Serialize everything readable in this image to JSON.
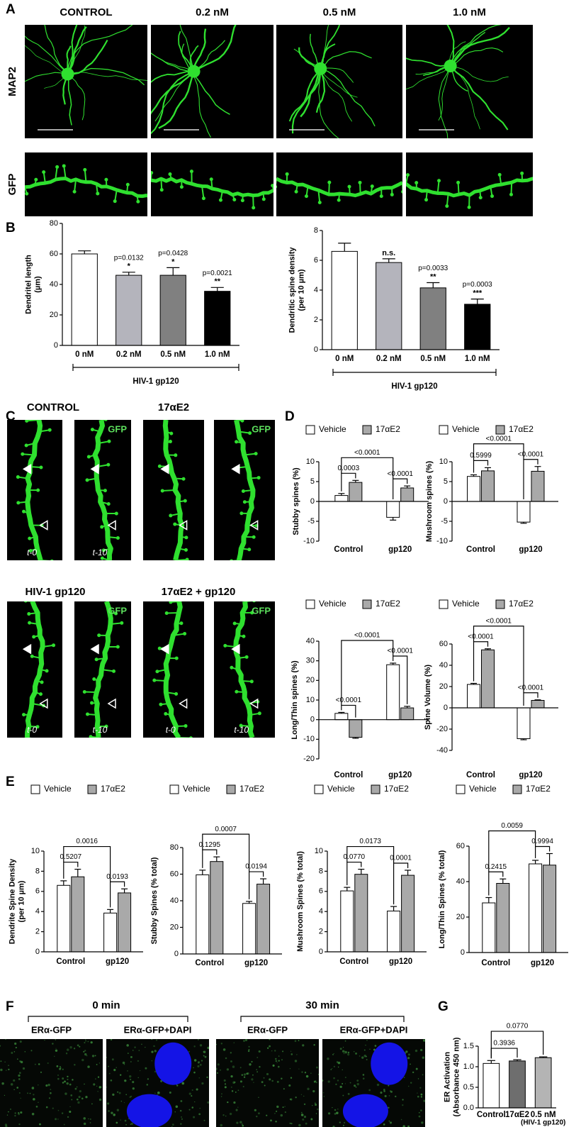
{
  "panel_letters": [
    "A",
    "B",
    "C",
    "D",
    "E",
    "F",
    "G"
  ],
  "panel_a": {
    "columns": [
      "CONTROL",
      "0.2 nM",
      "0.5 nM",
      "1.0 nM"
    ],
    "rows": [
      "MAP2",
      "GFP"
    ]
  },
  "panel_c": {
    "conditions": [
      "CONTROL",
      "17αE2",
      "HIV-1 gp120",
      "17αE2 + gp120"
    ],
    "channel": "GFP",
    "times": [
      "t-0",
      "t-10"
    ]
  },
  "panel_f": {
    "times": [
      "0 min",
      "30 min"
    ],
    "channels": [
      "ERα-GFP",
      "ERα-GFP+DAPI"
    ]
  },
  "chart_data": [
    {
      "type": "bar",
      "ylabel": [
        "Dendritel length",
        "(µm)"
      ],
      "xlabel": "HIV-1 gp120",
      "categories": [
        "0 nM",
        "0.2 nM",
        "0.5 nM",
        "1.0 nM"
      ],
      "values": [
        60,
        46,
        46,
        35.5
      ],
      "errors": [
        2,
        2,
        5,
        2.5
      ],
      "colors": [
        "#ffffff",
        "#b4b4bc",
        "#808080",
        "#000000"
      ],
      "p_values": [
        null,
        "p=0.0132",
        "p=0.0428",
        "p=0.0021"
      ],
      "significance": [
        null,
        "*",
        "*",
        "**"
      ],
      "ylim": [
        0,
        80
      ],
      "yticks": [
        0,
        20,
        40,
        60,
        80
      ]
    },
    {
      "type": "bar",
      "ylabel": [
        "Dendritic spine density",
        "(per 10 µm)"
      ],
      "xlabel": "HIV-1 gp120",
      "categories": [
        "0 nM",
        "0.2 nM",
        "0.5 nM",
        "1.0 nM"
      ],
      "values": [
        6.6,
        5.85,
        4.15,
        3.05
      ],
      "errors": [
        0.55,
        0.25,
        0.35,
        0.35
      ],
      "colors": [
        "#ffffff",
        "#b4b4bc",
        "#808080",
        "#000000"
      ],
      "p_values": [
        null,
        null,
        "p=0.0033",
        "p=0.0003"
      ],
      "significance": [
        null,
        "n.s.",
        "**",
        "***"
      ],
      "ylim": [
        0,
        8
      ],
      "yticks": [
        0,
        2,
        4,
        6,
        8
      ]
    },
    {
      "type": "grouped_bar",
      "ylabel": [
        "Stubby spines (%)"
      ],
      "categories": [
        "Control",
        "gp120"
      ],
      "series": [
        {
          "name": "Vehicle",
          "color": "#ffffff",
          "values": [
            1.5,
            -4
          ],
          "errors": [
            0.5,
            0.7
          ]
        },
        {
          "name": "17αE2",
          "color": "#a9a9a9",
          "values": [
            4.8,
            3.4
          ],
          "errors": [
            0.5,
            0.5
          ]
        }
      ],
      "comparisons": [
        "0.0003",
        "<0.0001",
        "<0.0001"
      ],
      "ylim": [
        -10,
        10
      ],
      "yticks": [
        -10,
        -5,
        0,
        5,
        10
      ]
    },
    {
      "type": "grouped_bar",
      "ylabel": [
        "Mushroom spines (%)"
      ],
      "categories": [
        "Control",
        "gp120"
      ],
      "series": [
        {
          "name": "Vehicle",
          "color": "#ffffff",
          "values": [
            6.3,
            -5.2
          ],
          "errors": [
            0.4,
            0.3
          ]
        },
        {
          "name": "17αE2",
          "color": "#a9a9a9",
          "values": [
            7.7,
            7.6
          ],
          "errors": [
            0.8,
            1.2
          ]
        }
      ],
      "comparisons": [
        "0.5999",
        "<0.0001",
        "<0.0001"
      ],
      "ylim": [
        -10,
        10
      ],
      "yticks": [
        -10,
        -5,
        0,
        5,
        10
      ]
    },
    {
      "type": "grouped_bar",
      "ylabel": [
        "Long/Thin spines (%)"
      ],
      "categories": [
        "Control",
        "gp120"
      ],
      "series": [
        {
          "name": "Vehicle",
          "color": "#ffffff",
          "values": [
            3.2,
            28
          ],
          "errors": [
            0.5,
            0.8
          ]
        },
        {
          "name": "17αE2",
          "color": "#a9a9a9",
          "values": [
            -9,
            6
          ],
          "errors": [
            0.5,
            0.8
          ]
        }
      ],
      "comparisons": [
        "<0.0001",
        "<0.0001",
        "<0.0001"
      ],
      "ylim": [
        -20,
        40
      ],
      "yticks": [
        -20,
        -10,
        0,
        10,
        20,
        30,
        40
      ]
    },
    {
      "type": "grouped_bar",
      "ylabel": [
        "Spine Volume (%)"
      ],
      "categories": [
        "Control",
        "gp120"
      ],
      "series": [
        {
          "name": "Vehicle",
          "color": "#ffffff",
          "values": [
            22,
            -29
          ],
          "errors": [
            1,
            1
          ]
        },
        {
          "name": "17αE2",
          "color": "#a9a9a9",
          "values": [
            54.5,
            7
          ],
          "errors": [
            1,
            0.5
          ]
        }
      ],
      "comparisons": [
        "<0.0001",
        "<0.0001",
        "<0.0001"
      ],
      "ylim": [
        -40,
        60
      ],
      "yticks": [
        -40,
        -20,
        0,
        20,
        40,
        60
      ]
    },
    {
      "type": "grouped_bar",
      "ylabel": [
        "Dendrite Spine Density",
        "(per 10 µm)"
      ],
      "categories": [
        "Control",
        "gp120"
      ],
      "series": [
        {
          "name": "Vehicle",
          "color": "#ffffff",
          "values": [
            6.6,
            3.85
          ],
          "errors": [
            0.45,
            0.35
          ]
        },
        {
          "name": "17αE2",
          "color": "#a9a9a9",
          "values": [
            7.45,
            5.85
          ],
          "errors": [
            0.75,
            0.4
          ]
        }
      ],
      "comparisons": [
        "0.5207",
        "0.0193",
        "0.0016"
      ],
      "ylim": [
        0,
        10
      ],
      "yticks": [
        0,
        2,
        4,
        6,
        8,
        10
      ]
    },
    {
      "type": "grouped_bar",
      "ylabel": [
        "Stubby Spines (% total)"
      ],
      "categories": [
        "Control",
        "gp120"
      ],
      "series": [
        {
          "name": "Vehicle",
          "color": "#ffffff",
          "values": [
            59.5,
            38
          ],
          "errors": [
            3.5,
            1.5
          ]
        },
        {
          "name": "17αE2",
          "color": "#a9a9a9",
          "values": [
            69.5,
            52.5
          ],
          "errors": [
            3.5,
            4
          ]
        }
      ],
      "comparisons": [
        "0.1295",
        "0.0194",
        "0.0007"
      ],
      "ylim": [
        0,
        80
      ],
      "yticks": [
        0,
        20,
        40,
        60,
        80
      ]
    },
    {
      "type": "grouped_bar",
      "ylabel": [
        "Mushroom Spines (% total)"
      ],
      "categories": [
        "Control",
        "gp120"
      ],
      "series": [
        {
          "name": "Vehicle",
          "color": "#ffffff",
          "values": [
            6.05,
            4.05
          ],
          "errors": [
            0.35,
            0.45
          ]
        },
        {
          "name": "17αE2",
          "color": "#a9a9a9",
          "values": [
            7.7,
            7.6
          ],
          "errors": [
            0.5,
            0.5
          ]
        }
      ],
      "comparisons": [
        "0.0770",
        "0.0001",
        "0.0173"
      ],
      "ylim": [
        0,
        10
      ],
      "yticks": [
        0,
        2,
        4,
        6,
        8,
        10
      ]
    },
    {
      "type": "grouped_bar",
      "ylabel": [
        "Long/Thin Spines (% total)"
      ],
      "categories": [
        "Control",
        "gp120"
      ],
      "series": [
        {
          "name": "Vehicle",
          "color": "#ffffff",
          "values": [
            28,
            50
          ],
          "errors": [
            3,
            2
          ]
        },
        {
          "name": "17αE2",
          "color": "#a9a9a9",
          "values": [
            39,
            49.3
          ],
          "errors": [
            2.5,
            6.5
          ]
        }
      ],
      "comparisons": [
        "0.2415",
        "0.9994",
        "0.0059"
      ],
      "ylim": [
        0,
        60
      ],
      "yticks": [
        0,
        20,
        40,
        60
      ]
    },
    {
      "type": "bar",
      "ylabel": [
        "ER Activation",
        "(Absorbance 450 nm)"
      ],
      "categories": [
        "Control",
        "17αE2",
        "0.5 nM"
      ],
      "category_notes": [
        null,
        null,
        "(HIV-1 gp120)"
      ],
      "values": [
        1.08,
        1.14,
        1.22
      ],
      "errors": [
        0.07,
        0.03,
        0.02
      ],
      "colors": [
        "#ffffff",
        "#6e6e6e",
        "#b4b4b4"
      ],
      "comparisons": [
        "0.3936",
        "0.0770"
      ],
      "ylim": [
        0,
        1.5
      ],
      "yticks": [
        {
          "value": 0,
          "label": "0.0"
        },
        {
          "value": 0.5,
          "label": "0.5"
        },
        {
          "value": 1,
          "label": "1.0"
        },
        {
          "value": 1.5,
          "label": "1.5"
        }
      ]
    }
  ]
}
